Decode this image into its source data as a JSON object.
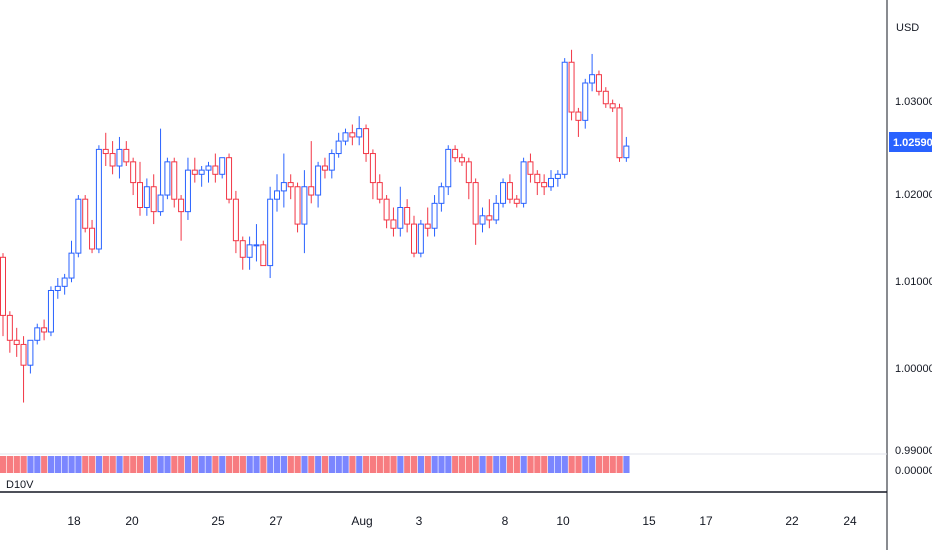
{
  "chart_data": {
    "type": "candlestick",
    "currency": "USD",
    "last_price": "1.02590",
    "y_ticks": [
      "1.03000",
      "1.02000",
      "1.01000",
      "1.00000",
      "0.99000"
    ],
    "ylim": [
      0.9888,
      1.0435
    ],
    "indicator": {
      "label": "D10V",
      "value_label": "0.00000"
    },
    "x_ticks": [
      "18",
      "20",
      "25",
      "27",
      "Aug",
      "3",
      "8",
      "10",
      "15",
      "17",
      "22",
      "24"
    ],
    "colors": {
      "up": "#2962ff",
      "down": "#f23645",
      "vol_up": "#7b86ff",
      "vol_down": "#f77c80",
      "last_price_bg": "#2962ff"
    },
    "candles": [
      [
        1.0125,
        1.013,
        1.003,
        1.0055
      ],
      [
        1.0055,
        1.006,
        1.001,
        1.0025
      ],
      [
        1.0025,
        1.004,
        1.0005,
        1.002
      ],
      [
        1.002,
        1.003,
        0.995,
        0.9995
      ],
      [
        0.9995,
        1.0025,
        0.9985,
        1.0025
      ],
      [
        1.0025,
        1.0045,
        1.002,
        1.004
      ],
      [
        1.004,
        1.005,
        1.0025,
        1.0035
      ],
      [
        1.0035,
        1.009,
        1.003,
        1.0085
      ],
      [
        1.0085,
        1.01,
        1.0075,
        1.009
      ],
      [
        1.009,
        1.0105,
        1.008,
        1.01
      ],
      [
        1.01,
        1.0145,
        1.0095,
        1.013
      ],
      [
        1.013,
        1.02,
        1.0125,
        1.0195
      ],
      [
        1.0195,
        1.02,
        1.0155,
        1.016
      ],
      [
        1.016,
        1.017,
        1.013,
        1.0135
      ],
      [
        1.0135,
        1.026,
        1.013,
        1.0255
      ],
      [
        1.0255,
        1.0275,
        1.0235,
        1.025
      ],
      [
        1.025,
        1.0265,
        1.0225,
        1.0235
      ],
      [
        1.0235,
        1.027,
        1.022,
        1.0255
      ],
      [
        1.0255,
        1.0265,
        1.0235,
        1.024
      ],
      [
        1.024,
        1.0245,
        1.02,
        1.0215
      ],
      [
        1.0215,
        1.024,
        1.0175,
        1.0185
      ],
      [
        1.0185,
        1.022,
        1.0175,
        1.021
      ],
      [
        1.021,
        1.0225,
        1.0165,
        1.018
      ],
      [
        1.018,
        1.028,
        1.0175,
        1.02
      ],
      [
        1.02,
        1.0245,
        1.0195,
        1.024
      ],
      [
        1.024,
        1.0245,
        1.0185,
        1.0195
      ],
      [
        1.0195,
        1.02,
        1.0145,
        1.018
      ],
      [
        1.018,
        1.0245,
        1.017,
        1.023
      ],
      [
        1.023,
        1.0245,
        1.0215,
        1.0225
      ],
      [
        1.0225,
        1.0235,
        1.021,
        1.023
      ],
      [
        1.023,
        1.024,
        1.0215,
        1.0235
      ],
      [
        1.0235,
        1.025,
        1.0215,
        1.0225
      ],
      [
        1.0225,
        1.0245,
        1.022,
        1.0245
      ],
      [
        1.0245,
        1.025,
        1.019,
        1.0195
      ],
      [
        1.0195,
        1.0205,
        1.013,
        1.0145
      ],
      [
        1.0145,
        1.015,
        1.011,
        1.0125
      ],
      [
        1.0125,
        1.015,
        1.011,
        1.014
      ],
      [
        1.014,
        1.0165,
        1.012,
        1.014
      ],
      [
        1.014,
        1.0145,
        1.0115,
        1.0115
      ],
      [
        1.0115,
        1.021,
        1.01,
        1.0195
      ],
      [
        1.0195,
        1.0225,
        1.018,
        1.0205
      ],
      [
        1.0205,
        1.025,
        1.0185,
        1.0215
      ],
      [
        1.0215,
        1.0225,
        1.0195,
        1.021
      ],
      [
        1.021,
        1.0215,
        1.0155,
        1.0165
      ],
      [
        1.0165,
        1.023,
        1.013,
        1.021
      ],
      [
        1.021,
        1.0265,
        1.019,
        1.02
      ],
      [
        1.02,
        1.024,
        1.0185,
        1.0235
      ],
      [
        1.0235,
        1.0245,
        1.022,
        1.023
      ],
      [
        1.023,
        1.0255,
        1.022,
        1.025
      ],
      [
        1.025,
        1.0275,
        1.0245,
        1.0265
      ],
      [
        1.0265,
        1.028,
        1.026,
        1.0275
      ],
      [
        1.0275,
        1.0285,
        1.026,
        1.027
      ],
      [
        1.027,
        1.0295,
        1.026,
        1.028
      ],
      [
        1.028,
        1.0285,
        1.024,
        1.025
      ],
      [
        1.025,
        1.0255,
        1.0195,
        1.0215
      ],
      [
        1.0215,
        1.0225,
        1.019,
        1.0195
      ],
      [
        1.0195,
        1.02,
        1.016,
        1.017
      ],
      [
        1.017,
        1.0185,
        1.015,
        1.016
      ],
      [
        1.016,
        1.021,
        1.015,
        1.0185
      ],
      [
        1.0185,
        1.0195,
        1.0155,
        1.0165
      ],
      [
        1.0165,
        1.0175,
        1.0125,
        1.013
      ],
      [
        1.013,
        1.017,
        1.0125,
        1.0165
      ],
      [
        1.0165,
        1.0185,
        1.015,
        1.016
      ],
      [
        1.016,
        1.02,
        1.015,
        1.019
      ],
      [
        1.019,
        1.0215,
        1.018,
        1.021
      ],
      [
        1.021,
        1.026,
        1.02,
        1.0255
      ],
      [
        1.0255,
        1.026,
        1.024,
        1.0245
      ],
      [
        1.0245,
        1.025,
        1.0235,
        1.024
      ],
      [
        1.024,
        1.0245,
        1.0195,
        1.0215
      ],
      [
        1.0215,
        1.022,
        1.014,
        1.0165
      ],
      [
        1.0165,
        1.0185,
        1.0155,
        1.0175
      ],
      [
        1.0175,
        1.0195,
        1.016,
        1.017
      ],
      [
        1.017,
        1.02,
        1.0165,
        1.019
      ],
      [
        1.019,
        1.022,
        1.0185,
        1.0215
      ],
      [
        1.0215,
        1.0225,
        1.019,
        1.0195
      ],
      [
        1.0195,
        1.02,
        1.0185,
        1.019
      ],
      [
        1.019,
        1.0245,
        1.0185,
        1.024
      ],
      [
        1.024,
        1.025,
        1.0215,
        1.0225
      ],
      [
        1.0225,
        1.023,
        1.02,
        1.0215
      ],
      [
        1.0215,
        1.0225,
        1.02,
        1.021
      ],
      [
        1.021,
        1.023,
        1.0205,
        1.022
      ],
      [
        1.022,
        1.023,
        1.021,
        1.0225
      ],
      [
        1.0225,
        1.0365,
        1.022,
        1.036
      ],
      [
        1.036,
        1.0375,
        1.029,
        1.03
      ],
      [
        1.03,
        1.0305,
        1.027,
        1.029
      ],
      [
        1.029,
        1.034,
        1.028,
        1.0335
      ],
      [
        1.0335,
        1.037,
        1.0325,
        1.0345
      ],
      [
        1.0345,
        1.035,
        1.032,
        1.0325
      ],
      [
        1.0325,
        1.033,
        1.0305,
        1.031
      ],
      [
        1.031,
        1.0315,
        1.03,
        1.0305
      ],
      [
        1.0305,
        1.031,
        1.024,
        1.0245
      ],
      [
        1.0245,
        1.027,
        1.024,
        1.0259
      ]
    ]
  }
}
